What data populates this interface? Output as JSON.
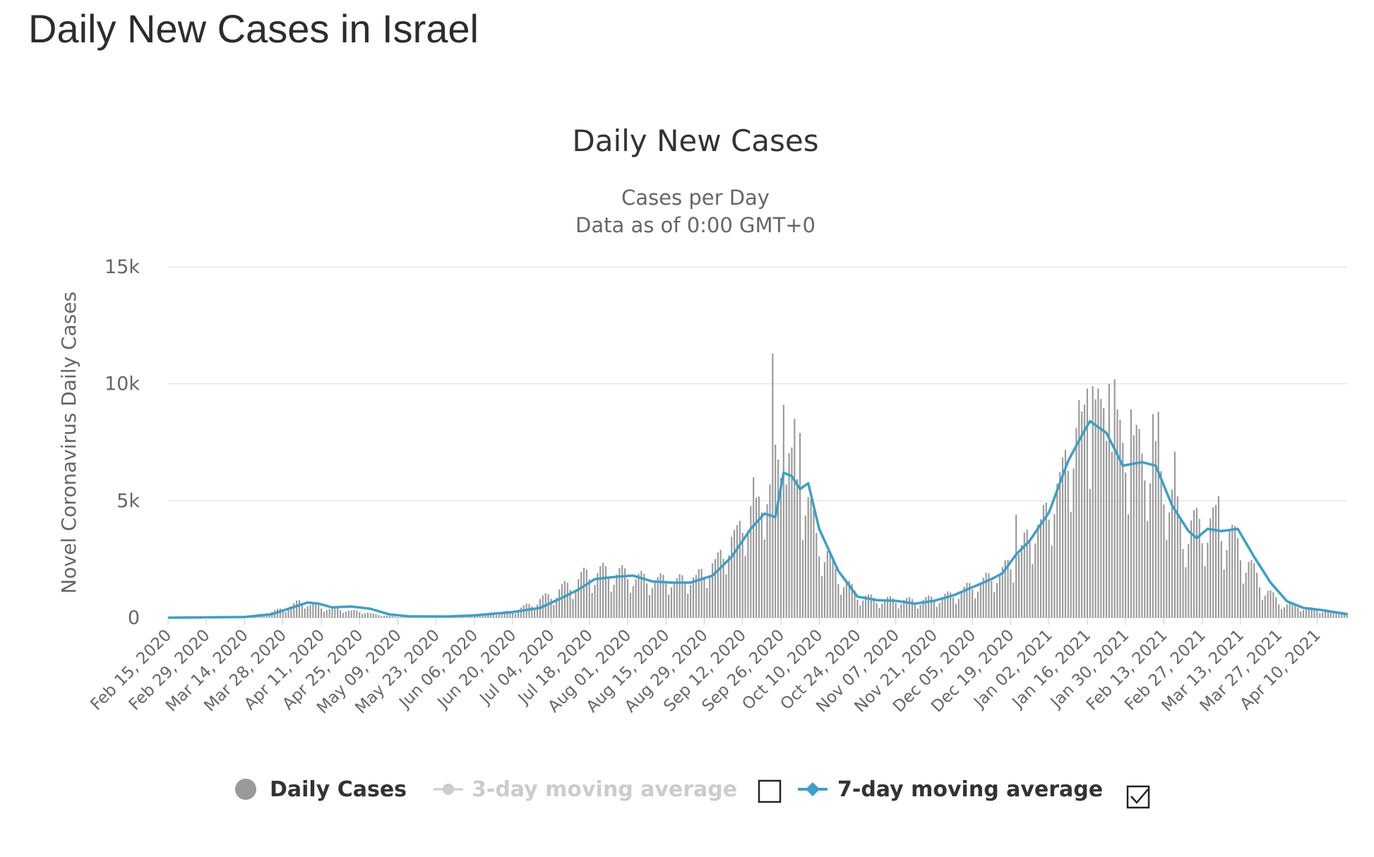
{
  "page": {
    "title": "Daily New Cases in Israel"
  },
  "chart_data": {
    "type": "bar",
    "title": "Daily New Cases",
    "subtitle_lines": [
      "Cases per Day",
      "Data as of 0:00 GMT+0"
    ],
    "ylabel": "Novel Coronavirus Daily Cases",
    "xlabel": "",
    "ylim": [
      0,
      15000
    ],
    "y_tick_values": [
      0,
      5000,
      10000,
      15000
    ],
    "y_tick_labels": [
      "0",
      "5k",
      "10k",
      "15k"
    ],
    "x_range": [
      "2020-02-15",
      "2021-04-21"
    ],
    "x_tick_labels": [
      "Feb 15, 2020",
      "Feb 29, 2020",
      "Mar 14, 2020",
      "Mar 28, 2020",
      "Apr 11, 2020",
      "Apr 25, 2020",
      "May 09, 2020",
      "May 23, 2020",
      "Jun 06, 2020",
      "Jun 20, 2020",
      "Jul 04, 2020",
      "Jul 18, 2020",
      "Aug 01, 2020",
      "Aug 15, 2020",
      "Aug 29, 2020",
      "Sep 12, 2020",
      "Sep 26, 2020",
      "Oct 10, 2020",
      "Oct 24, 2020",
      "Nov 07, 2020",
      "Nov 21, 2020",
      "Dec 05, 2020",
      "Dec 19, 2020",
      "Jan 02, 2021",
      "Jan 16, 2021",
      "Jan 30, 2021",
      "Feb 13, 2021",
      "Feb 27, 2021",
      "Mar 13, 2021",
      "Mar 27, 2021",
      "Apr 10, 2021"
    ],
    "grid": true,
    "legend_position": "bottom",
    "series": [
      {
        "name": "Daily Cases",
        "kind": "bar",
        "color": "#999999",
        "points": [
          [
            "2020-02-15",
            0
          ],
          [
            "2020-02-29",
            2
          ],
          [
            "2020-03-14",
            40
          ],
          [
            "2020-03-21",
            150
          ],
          [
            "2020-03-28",
            350
          ],
          [
            "2020-04-04",
            650
          ],
          [
            "2020-04-11",
            400
          ],
          [
            "2020-04-18",
            320
          ],
          [
            "2020-04-25",
            250
          ],
          [
            "2020-05-02",
            120
          ],
          [
            "2020-05-09",
            30
          ],
          [
            "2020-05-23",
            30
          ],
          [
            "2020-06-06",
            120
          ],
          [
            "2020-06-13",
            180
          ],
          [
            "2020-06-20",
            250
          ],
          [
            "2020-06-27",
            550
          ],
          [
            "2020-07-04",
            900
          ],
          [
            "2020-07-11",
            1300
          ],
          [
            "2020-07-18",
            1750
          ],
          [
            "2020-07-25",
            1800
          ],
          [
            "2020-08-01",
            1700
          ],
          [
            "2020-08-08",
            1500
          ],
          [
            "2020-08-15",
            1500
          ],
          [
            "2020-08-22",
            1500
          ],
          [
            "2020-08-29",
            1800
          ],
          [
            "2020-09-05",
            2600
          ],
          [
            "2020-09-12",
            3800
          ],
          [
            "2020-09-19",
            4800
          ],
          [
            "2020-09-26",
            6500
          ],
          [
            "2020-10-03",
            5500
          ],
          [
            "2020-10-10",
            3000
          ],
          [
            "2020-10-17",
            1700
          ],
          [
            "2020-10-24",
            900
          ],
          [
            "2020-10-31",
            700
          ],
          [
            "2020-11-07",
            700
          ],
          [
            "2020-11-14",
            650
          ],
          [
            "2020-11-21",
            750
          ],
          [
            "2020-11-28",
            900
          ],
          [
            "2020-12-05",
            1250
          ],
          [
            "2020-12-12",
            1600
          ],
          [
            "2020-12-19",
            2100
          ],
          [
            "2020-12-26",
            3300
          ],
          [
            "2021-01-02",
            4300
          ],
          [
            "2021-01-09",
            6500
          ],
          [
            "2021-01-16",
            8300
          ],
          [
            "2021-01-23",
            8100
          ],
          [
            "2021-01-30",
            6800
          ],
          [
            "2021-02-06",
            6600
          ],
          [
            "2021-02-13",
            5600
          ],
          [
            "2021-02-20",
            3500
          ],
          [
            "2021-02-27",
            3700
          ],
          [
            "2021-03-06",
            3700
          ],
          [
            "2021-03-13",
            2700
          ],
          [
            "2021-03-20",
            1400
          ],
          [
            "2021-03-27",
            600
          ],
          [
            "2021-04-03",
            450
          ],
          [
            "2021-04-10",
            300
          ],
          [
            "2021-04-21",
            180
          ]
        ]
      },
      {
        "name": "3-day moving average",
        "kind": "line",
        "color": "#cccccc",
        "hidden": true,
        "points": []
      },
      {
        "name": "7-day moving average",
        "kind": "line",
        "color": "#3aa0c9",
        "points": [
          [
            "2020-02-15",
            0
          ],
          [
            "2020-03-14",
            30
          ],
          [
            "2020-03-24",
            150
          ],
          [
            "2020-03-31",
            420
          ],
          [
            "2020-04-06",
            650
          ],
          [
            "2020-04-10",
            600
          ],
          [
            "2020-04-15",
            440
          ],
          [
            "2020-04-22",
            480
          ],
          [
            "2020-04-29",
            380
          ],
          [
            "2020-05-06",
            140
          ],
          [
            "2020-05-13",
            60
          ],
          [
            "2020-05-27",
            50
          ],
          [
            "2020-06-06",
            100
          ],
          [
            "2020-06-20",
            240
          ],
          [
            "2020-06-30",
            420
          ],
          [
            "2020-07-08",
            850
          ],
          [
            "2020-07-14",
            1200
          ],
          [
            "2020-07-20",
            1650
          ],
          [
            "2020-07-28",
            1750
          ],
          [
            "2020-08-03",
            1800
          ],
          [
            "2020-08-10",
            1550
          ],
          [
            "2020-08-17",
            1500
          ],
          [
            "2020-08-24",
            1500
          ],
          [
            "2020-09-01",
            1800
          ],
          [
            "2020-09-08",
            2600
          ],
          [
            "2020-09-15",
            3800
          ],
          [
            "2020-09-20",
            4450
          ],
          [
            "2020-09-24",
            4300
          ],
          [
            "2020-09-27",
            6200
          ],
          [
            "2020-09-30",
            6050
          ],
          [
            "2020-10-03",
            5500
          ],
          [
            "2020-10-06",
            5750
          ],
          [
            "2020-10-10",
            3800
          ],
          [
            "2020-10-17",
            2000
          ],
          [
            "2020-10-24",
            900
          ],
          [
            "2020-10-31",
            750
          ],
          [
            "2020-11-07",
            720
          ],
          [
            "2020-11-14",
            600
          ],
          [
            "2020-11-21",
            720
          ],
          [
            "2020-11-28",
            950
          ],
          [
            "2020-12-05",
            1300
          ],
          [
            "2020-12-12",
            1650
          ],
          [
            "2020-12-16",
            1900
          ],
          [
            "2020-12-21",
            2700
          ],
          [
            "2020-12-26",
            3300
          ],
          [
            "2021-01-02",
            4500
          ],
          [
            "2021-01-09",
            6700
          ],
          [
            "2021-01-15",
            8000
          ],
          [
            "2021-01-17",
            8400
          ],
          [
            "2021-01-23",
            7900
          ],
          [
            "2021-01-29",
            6500
          ],
          [
            "2021-02-05",
            6650
          ],
          [
            "2021-02-10",
            6500
          ],
          [
            "2021-02-16",
            4800
          ],
          [
            "2021-02-22",
            3700
          ],
          [
            "2021-02-25",
            3400
          ],
          [
            "2021-03-01",
            3800
          ],
          [
            "2021-03-06",
            3700
          ],
          [
            "2021-03-12",
            3800
          ],
          [
            "2021-03-18",
            2600
          ],
          [
            "2021-03-24",
            1500
          ],
          [
            "2021-03-30",
            700
          ],
          [
            "2021-04-05",
            420
          ],
          [
            "2021-04-12",
            320
          ],
          [
            "2021-04-21",
            150
          ]
        ]
      }
    ],
    "spikes": [
      [
        "2020-09-23",
        11300
      ],
      [
        "2020-09-24",
        7400
      ],
      [
        "2020-09-27",
        9100
      ],
      [
        "2020-10-01",
        8500
      ],
      [
        "2020-10-03",
        7900
      ],
      [
        "2020-09-16",
        6000
      ],
      [
        "2020-09-22",
        5700
      ],
      [
        "2021-01-13",
        9300
      ],
      [
        "2021-01-16",
        9800
      ],
      [
        "2021-01-18",
        9900
      ],
      [
        "2021-01-20",
        9800
      ],
      [
        "2021-01-24",
        10000
      ],
      [
        "2021-01-26",
        10200
      ],
      [
        "2021-02-01",
        8900
      ],
      [
        "2021-02-09",
        8700
      ],
      [
        "2021-02-11",
        8800
      ],
      [
        "2021-02-17",
        7100
      ],
      [
        "2021-03-05",
        5200
      ],
      [
        "2020-12-21",
        4400
      ]
    ]
  },
  "legend": {
    "items": [
      {
        "label": "Daily Cases",
        "color": "#999999",
        "text_color": "#333333",
        "marker": "circle-icon",
        "enabled": true
      },
      {
        "label": "3-day moving average",
        "color": "#cccccc",
        "text_color": "#cccccc",
        "marker": "line-dot-icon",
        "enabled": false,
        "checkbox": false
      },
      {
        "label": "7-day moving average",
        "color": "#3aa0c9",
        "text_color": "#333333",
        "marker": "line-diamond-icon",
        "enabled": true,
        "checkbox": true
      }
    ]
  }
}
